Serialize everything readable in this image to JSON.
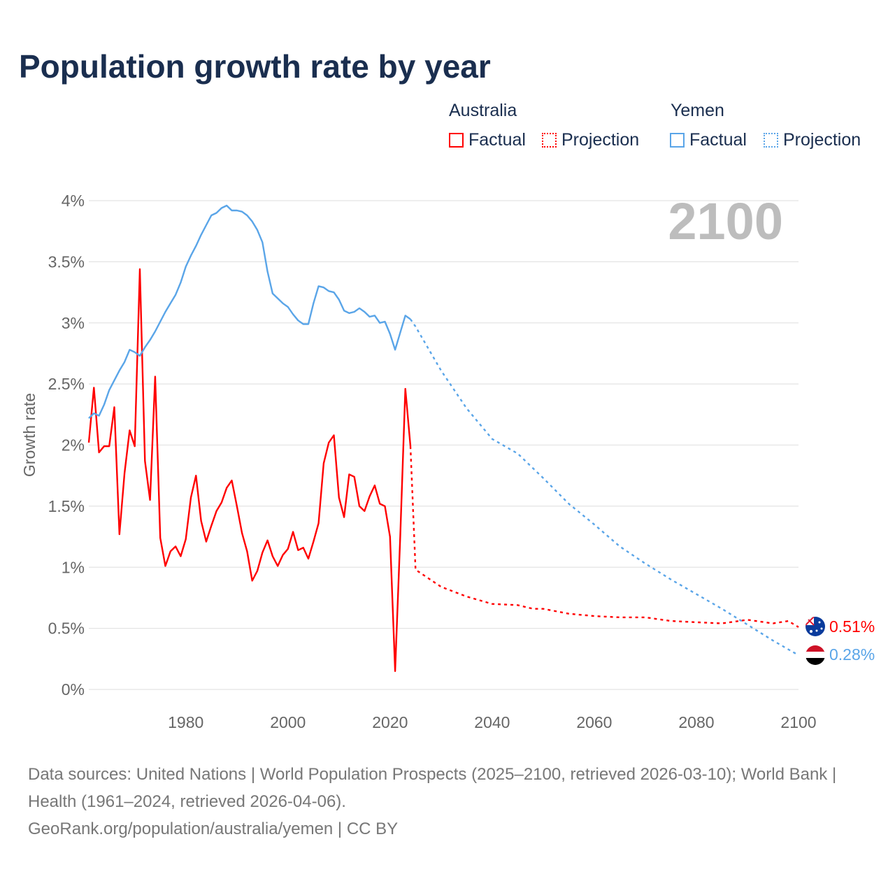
{
  "title": "Population growth rate by year",
  "legend": {
    "groups": [
      {
        "name": "Australia",
        "factual": "Factual",
        "projection": "Projection"
      },
      {
        "name": "Yemen",
        "factual": "Factual",
        "projection": "Projection"
      }
    ]
  },
  "colors": {
    "australia": "#ff0000",
    "yemen": "#5aa5e8",
    "title": "#1a2e4f",
    "grid": "#e4e4e4",
    "watermark": "#bdbdbd"
  },
  "watermark_year": "2100",
  "end_labels": {
    "australia": "0.51%",
    "yemen": "0.28%"
  },
  "flags": {
    "australia": "australia-flag",
    "yemen": "yemen-flag"
  },
  "source": {
    "line1": "Data sources: United Nations | World Population Prospects (2025–2100, retrieved 2026-03-10); World Bank | Health (1961–2024, retrieved 2026-04-06).",
    "line2": "GeoRank.org/population/australia/yemen | CC BY"
  },
  "chart_data": {
    "type": "line",
    "title": "Population growth rate by year",
    "xlabel": "",
    "ylabel": "Growth rate",
    "xlim": [
      1961,
      2100
    ],
    "ylim": [
      0,
      4
    ],
    "x_ticks": [
      "1980",
      "2000",
      "2020",
      "2040",
      "2060",
      "2080",
      "2100"
    ],
    "x_tick_values": [
      1980,
      2000,
      2020,
      2040,
      2060,
      2080,
      2100
    ],
    "y_ticks": [
      "0%",
      "0.5%",
      "1%",
      "1.5%",
      "2%",
      "2.5%",
      "3%",
      "3.5%",
      "4%"
    ],
    "y_tick_values": [
      0,
      0.5,
      1,
      1.5,
      2,
      2.5,
      3,
      3.5,
      4
    ],
    "grid": true,
    "legend_position": "top-right",
    "series": [
      {
        "name": "Australia Factual",
        "key": "australia",
        "dashed": false,
        "x_start": 1961,
        "values": [
          2.02,
          2.47,
          1.94,
          1.99,
          1.99,
          2.31,
          1.27,
          1.77,
          2.12,
          1.99,
          3.44,
          1.87,
          1.55,
          2.56,
          1.24,
          1.01,
          1.13,
          1.17,
          1.09,
          1.23,
          1.57,
          1.75,
          1.38,
          1.21,
          1.34,
          1.46,
          1.53,
          1.65,
          1.71,
          1.5,
          1.28,
          1.13,
          0.89,
          0.97,
          1.12,
          1.22,
          1.09,
          1.01,
          1.1,
          1.15,
          1.29,
          1.14,
          1.16,
          1.07,
          1.21,
          1.36,
          1.85,
          2.02,
          2.08,
          1.57,
          1.41,
          1.76,
          1.74,
          1.5,
          1.46,
          1.58,
          1.67,
          1.52,
          1.5,
          1.25,
          0.15,
          1.25,
          2.46,
          1.99
        ]
      },
      {
        "name": "Australia Projection",
        "key": "australia",
        "dashed": true,
        "x": [
          2024,
          2025,
          2030,
          2035,
          2040,
          2045,
          2048,
          2050,
          2055,
          2060,
          2065,
          2070,
          2075,
          2080,
          2085,
          2090,
          2095,
          2098,
          2100
        ],
        "values": [
          1.99,
          0.98,
          0.84,
          0.76,
          0.7,
          0.69,
          0.66,
          0.66,
          0.62,
          0.6,
          0.59,
          0.59,
          0.56,
          0.55,
          0.54,
          0.57,
          0.54,
          0.56,
          0.51
        ]
      },
      {
        "name": "Yemen Factual",
        "key": "yemen",
        "dashed": false,
        "x_start": 1961,
        "values": [
          2.22,
          2.26,
          2.24,
          2.33,
          2.45,
          2.53,
          2.61,
          2.68,
          2.78,
          2.76,
          2.73,
          2.8,
          2.86,
          2.93,
          3.01,
          3.09,
          3.16,
          3.23,
          3.33,
          3.46,
          3.55,
          3.63,
          3.72,
          3.8,
          3.88,
          3.9,
          3.94,
          3.96,
          3.92,
          3.92,
          3.91,
          3.88,
          3.83,
          3.76,
          3.66,
          3.42,
          3.24,
          3.2,
          3.16,
          3.13,
          3.07,
          3.02,
          2.99,
          2.99,
          3.16,
          3.3,
          3.29,
          3.26,
          3.25,
          3.19,
          3.1,
          3.08,
          3.09,
          3.12,
          3.09,
          3.05,
          3.06,
          3.0,
          3.01,
          2.91,
          2.78,
          2.92,
          3.06,
          3.03
        ]
      },
      {
        "name": "Yemen Projection",
        "key": "yemen",
        "dashed": true,
        "x": [
          2024,
          2025,
          2030,
          2035,
          2040,
          2045,
          2050,
          2055,
          2060,
          2065,
          2070,
          2075,
          2080,
          2085,
          2090,
          2095,
          2100
        ],
        "values": [
          3.03,
          2.97,
          2.61,
          2.3,
          2.05,
          1.93,
          1.73,
          1.52,
          1.35,
          1.17,
          1.03,
          0.9,
          0.78,
          0.66,
          0.53,
          0.4,
          0.28
        ]
      }
    ]
  }
}
